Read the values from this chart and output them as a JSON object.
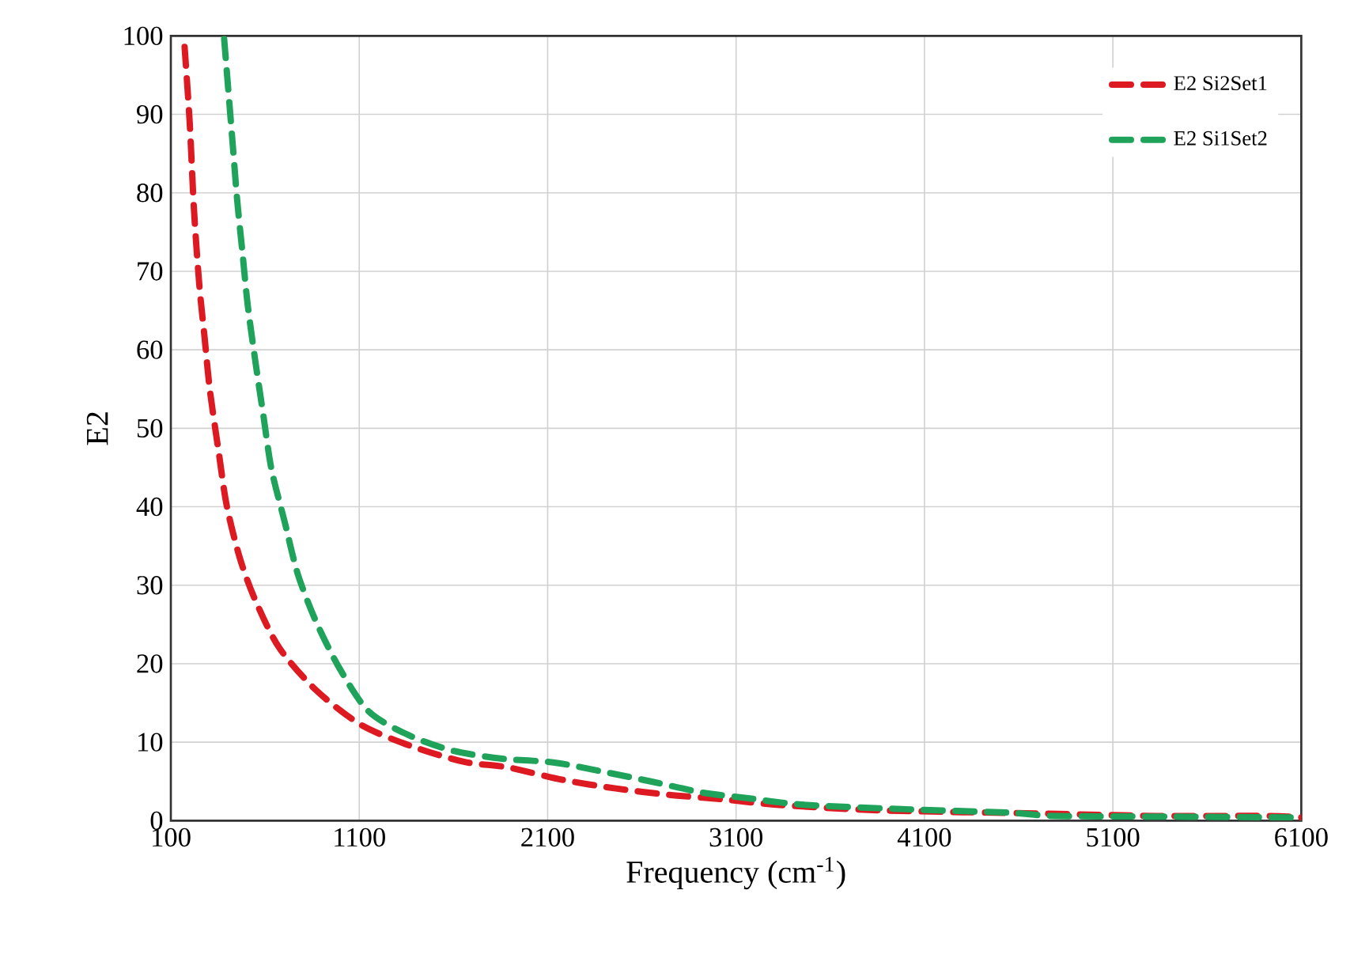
{
  "chart_data": {
    "type": "line",
    "xlabel": "Frequency (cm$^{-1}$)",
    "ylabel": "E2",
    "xlim": [
      100,
      6100
    ],
    "xticks": [
      100,
      1100,
      2100,
      3100,
      4100,
      5100,
      6100
    ],
    "ylim": [
      0,
      100
    ],
    "yticks": [
      0,
      10,
      20,
      30,
      40,
      50,
      60,
      70,
      80,
      90,
      100
    ],
    "grid": true,
    "legend": "top right",
    "marker": "none",
    "line_style": "dashed",
    "series": [
      {
        "name": "E2 Si2Set1",
        "color": "#dd1a22",
        "x": [
          173,
          200,
          223,
          251,
          279,
          307,
          355,
          397,
          467,
          550,
          676,
          872,
          1110,
          1376,
          1655,
          1887,
          2180,
          2462,
          2741,
          3036,
          3330,
          3888,
          4740,
          5331,
          5920,
          6100
        ],
        "values": [
          98.6,
          89,
          77.8,
          68.3,
          61.6,
          54.9,
          46.8,
          40.1,
          33.4,
          28,
          22,
          16.6,
          12.2,
          9.5,
          7.5,
          6.8,
          5.2,
          4.1,
          3.3,
          2.7,
          2.0,
          1.3,
          0.9,
          0.6,
          0.6,
          0.4
        ]
      },
      {
        "name": "E2 Si1Set2",
        "color": "#1fa35a",
        "x": [
          383,
          425,
          452,
          480,
          508,
          550,
          592,
          634,
          704,
          774,
          872,
          998,
          1151,
          1362,
          1599,
          1858,
          2137,
          2402,
          2667,
          2917,
          3182,
          3476,
          4065,
          4563,
          4798,
          5500,
          6100
        ],
        "values": [
          99.6,
          87.2,
          79.1,
          72.4,
          65.7,
          58.3,
          51.5,
          44.8,
          38.1,
          31.4,
          25.3,
          19.3,
          13.9,
          10.9,
          8.9,
          7.9,
          7.4,
          6.2,
          4.9,
          3.6,
          2.8,
          2.0,
          1.4,
          1.0,
          0.6,
          0.5,
          0.4
        ]
      }
    ]
  }
}
